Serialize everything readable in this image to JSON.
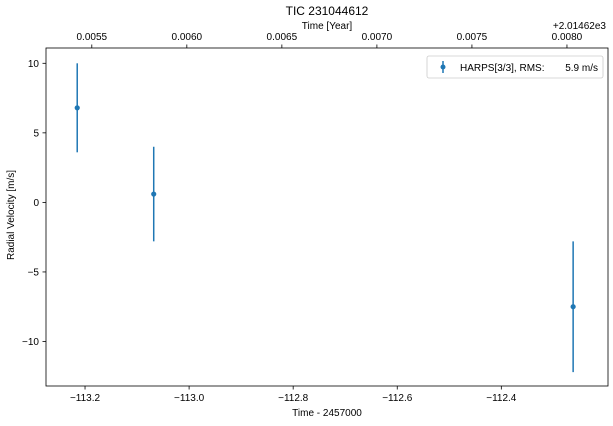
{
  "chart_data": {
    "type": "scatter",
    "title": "TIC 231044612",
    "xlabel": "Time - 2457000",
    "ylabel": "Radial Velocity [m/s]",
    "top_xlabel": "Time [Year]",
    "top_offset_text": "+2.01462e3",
    "xlim": [
      -113.275,
      -112.195
    ],
    "ylim": [
      -13.2,
      11.1
    ],
    "x_ticks": [
      -113.2,
      -113.0,
      -112.8,
      -112.6,
      -112.4
    ],
    "x_tick_labels": [
      "−113.2",
      "−113.0",
      "−112.8",
      "−112.6",
      "−112.4"
    ],
    "y_ticks": [
      10,
      5,
      0,
      -5,
      -10
    ],
    "y_tick_labels": [
      "10",
      "5",
      "0",
      "−5",
      "−10"
    ],
    "top_ticks": [
      0.0055,
      0.006,
      0.0065,
      0.007,
      0.0075,
      0.008
    ],
    "top_tick_labels": [
      "0.0055",
      "0.0060",
      "0.0065",
      "0.0070",
      "0.0075",
      "0.0080"
    ],
    "top_axis_map": {
      "x_at_0.0055": -113.187,
      "x_per_unit": 365.25
    },
    "grid": false,
    "legend_position": "top-right",
    "series": [
      {
        "name": "HARPS[3/3], RMS:",
        "rms_text": "5.9 m/s",
        "color": "#1f77b4",
        "x": [
          -113.215,
          -113.068,
          -112.262
        ],
        "y": [
          6.8,
          0.6,
          -7.5
        ],
        "yerr": [
          3.2,
          3.4,
          4.7
        ]
      }
    ]
  }
}
